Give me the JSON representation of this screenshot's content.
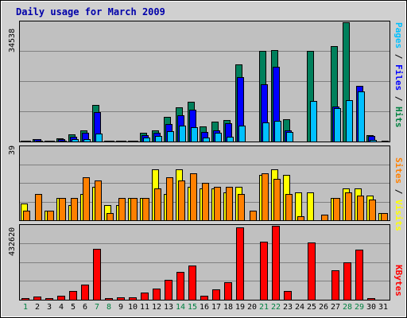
{
  "title": "Daily usage for March 2009",
  "colors": {
    "hits": "#00805c",
    "files": "#0000ff",
    "pages": "#00c0ff",
    "visits": "#ffff00",
    "sites": "#ff8000",
    "kbytes": "#ff0000",
    "panel": "#c0c0c0",
    "frame_bg": "#d0d0d0",
    "weekend": "#008040",
    "weekday": "#000000"
  },
  "panels": {
    "top": {
      "max_label": "34538",
      "legend": [
        "Pages",
        "Files",
        "Hits"
      ]
    },
    "middle": {
      "max_label": "39",
      "legend": [
        "Sites",
        "Visits"
      ]
    },
    "bottom": {
      "max_label": "432620",
      "legend": [
        "KBytes"
      ]
    }
  },
  "separator": " / ",
  "weekend_days": [
    1,
    7,
    8,
    14,
    15,
    21,
    22,
    28,
    29
  ],
  "chart_data": {
    "type": "bar",
    "x": [
      1,
      2,
      3,
      4,
      5,
      6,
      7,
      8,
      9,
      10,
      11,
      12,
      13,
      14,
      15,
      16,
      17,
      18,
      19,
      20,
      21,
      22,
      23,
      24,
      25,
      26,
      27,
      28,
      29,
      30,
      31
    ],
    "categories": [
      "1",
      "2",
      "3",
      "4",
      "5",
      "6",
      "7",
      "8",
      "9",
      "10",
      "11",
      "12",
      "13",
      "14",
      "15",
      "16",
      "17",
      "18",
      "19",
      "20",
      "21",
      "22",
      "23",
      "24",
      "25",
      "26",
      "27",
      "28",
      "29",
      "30",
      "31"
    ],
    "series": [
      {
        "name": "Hits",
        "panel": "top",
        "values": [
          300,
          800,
          200,
          900,
          2000,
          3300,
          10500,
          300,
          300,
          200,
          2600,
          3200,
          7100,
          9900,
          11600,
          4400,
          5700,
          6300,
          22300,
          0,
          26200,
          26400,
          6400,
          0,
          26300,
          0,
          27700,
          34500,
          0,
          1800,
          0
        ]
      },
      {
        "name": "Files",
        "panel": "top",
        "values": [
          200,
          600,
          100,
          700,
          1400,
          2500,
          8600,
          100,
          200,
          100,
          1800,
          2500,
          5100,
          7500,
          9200,
          2700,
          3300,
          5200,
          18700,
          0,
          16500,
          21600,
          3300,
          0,
          0,
          0,
          10100,
          0,
          16100,
          1500,
          0
        ]
      },
      {
        "name": "Pages",
        "panel": "top",
        "values": [
          100,
          300,
          100,
          300,
          600,
          700,
          2300,
          100,
          100,
          100,
          1100,
          1600,
          3000,
          4600,
          4100,
          1200,
          2500,
          1300,
          4600,
          0,
          5500,
          5900,
          2700,
          0,
          11800,
          0,
          9600,
          12000,
          14500,
          400,
          300
        ]
      },
      {
        "name": "Visits",
        "panel": "middle",
        "values": [
          9,
          0,
          5,
          12,
          8,
          14,
          18,
          8,
          8,
          12,
          12,
          27,
          14,
          27,
          18,
          17,
          17,
          15,
          18,
          0,
          24,
          27,
          24,
          15,
          15,
          0,
          12,
          17,
          17,
          13,
          4
        ]
      },
      {
        "name": "Sites",
        "panel": "middle",
        "values": [
          5,
          14,
          5,
          12,
          12,
          23,
          21,
          4,
          12,
          12,
          12,
          17,
          23,
          21,
          25,
          20,
          18,
          18,
          14,
          5,
          25,
          22,
          14,
          2,
          0,
          3,
          12,
          15,
          13,
          11,
          4
        ]
      },
      {
        "name": "KBytes",
        "panel": "bottom",
        "values": [
          8000,
          18000,
          8000,
          25000,
          53000,
          87000,
          300000,
          8000,
          15000,
          15000,
          44000,
          63000,
          114000,
          163000,
          202000,
          25000,
          60000,
          104000,
          421000,
          0,
          340000,
          431000,
          50000,
          0,
          335000,
          0,
          170000,
          220000,
          292000,
          8000,
          0
        ]
      }
    ]
  }
}
